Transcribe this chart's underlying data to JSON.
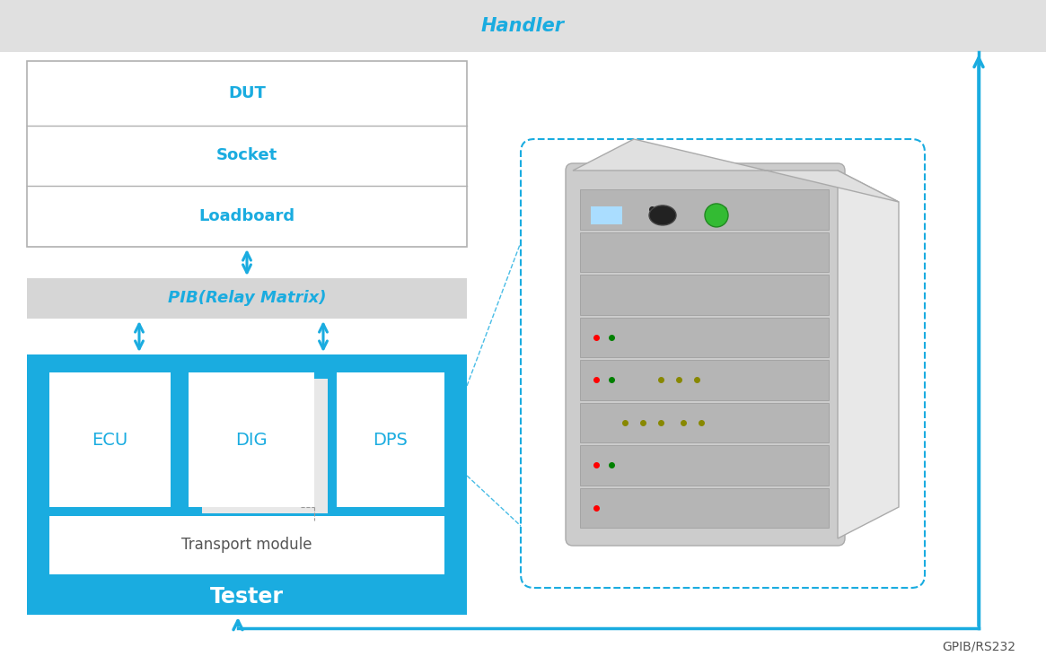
{
  "bg_color": "#ffffff",
  "handler_bg": "#e0e0e0",
  "cyan": "#1aace0",
  "white": "#ffffff",
  "tester_bg": "#1aace0",
  "gray_pib": "#d6d6d6",
  "handler_label": "Handler",
  "dut_label": "DUT",
  "socket_label": "Socket",
  "loadboard_label": "Loadboard",
  "pib_label": "PIB(Relay Matrix)",
  "ecu_label": "ECU",
  "dig_label": "DIG",
  "dps_label": "DPS",
  "transport_label": "Transport module",
  "tester_label": "Tester",
  "gpib_label": "GPIB/RS232",
  "server_front_color": "#c0c0c0",
  "server_side_color": "#e8e8e8",
  "server_slot_color": "#b0b0b0",
  "server_dark_slot": "#a8a8a8"
}
